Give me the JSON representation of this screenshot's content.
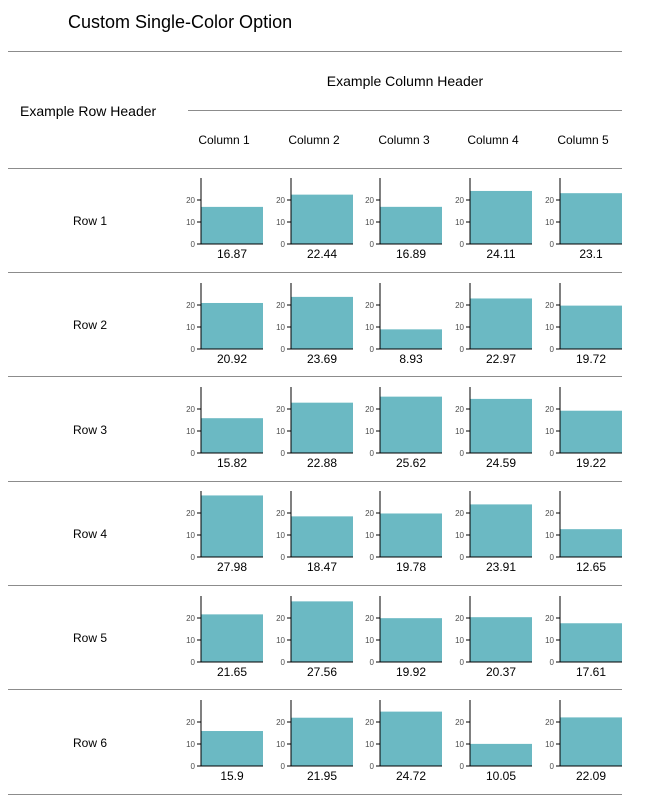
{
  "title": "Custom Single-Color Option",
  "column_group_header": "Example Column Header",
  "row_group_header": "Example Row Header",
  "columns": [
    "Column 1",
    "Column 2",
    "Column 3",
    "Column 4",
    "Column 5"
  ],
  "rows": [
    "Row 1",
    "Row 2",
    "Row 3",
    "Row 4",
    "Row 5",
    "Row 6"
  ],
  "colors": {
    "bar": "#6bb9c3",
    "axis": "#000000",
    "rule": "#8c8c8c",
    "tick_text": "#4d4d4d"
  },
  "chart_data": {
    "type": "bar",
    "description_free": true,
    "yticks": [
      0,
      10,
      20
    ],
    "ylim": [
      0,
      30
    ],
    "values": [
      [
        16.87,
        22.44,
        16.89,
        24.11,
        23.1
      ],
      [
        20.92,
        23.69,
        8.93,
        22.97,
        19.72
      ],
      [
        15.82,
        22.88,
        25.62,
        24.59,
        19.22
      ],
      [
        27.98,
        18.47,
        19.78,
        23.91,
        12.65
      ],
      [
        21.65,
        27.56,
        19.92,
        20.37,
        17.61
      ],
      [
        15.9,
        21.95,
        24.72,
        10.05,
        22.09
      ]
    ],
    "labels": [
      [
        "16.87",
        "22.44",
        "16.89",
        "24.11",
        "23.1"
      ],
      [
        "20.92",
        "23.69",
        "8.93",
        "22.97",
        "19.72"
      ],
      [
        "15.82",
        "22.88",
        "25.62",
        "24.59",
        "19.22"
      ],
      [
        "27.98",
        "18.47",
        "19.78",
        "23.91",
        "12.65"
      ],
      [
        "21.65",
        "27.56",
        "19.92",
        "20.37",
        "17.61"
      ],
      [
        "15.9",
        "21.95",
        "24.72",
        "10.05",
        "22.09"
      ]
    ]
  }
}
